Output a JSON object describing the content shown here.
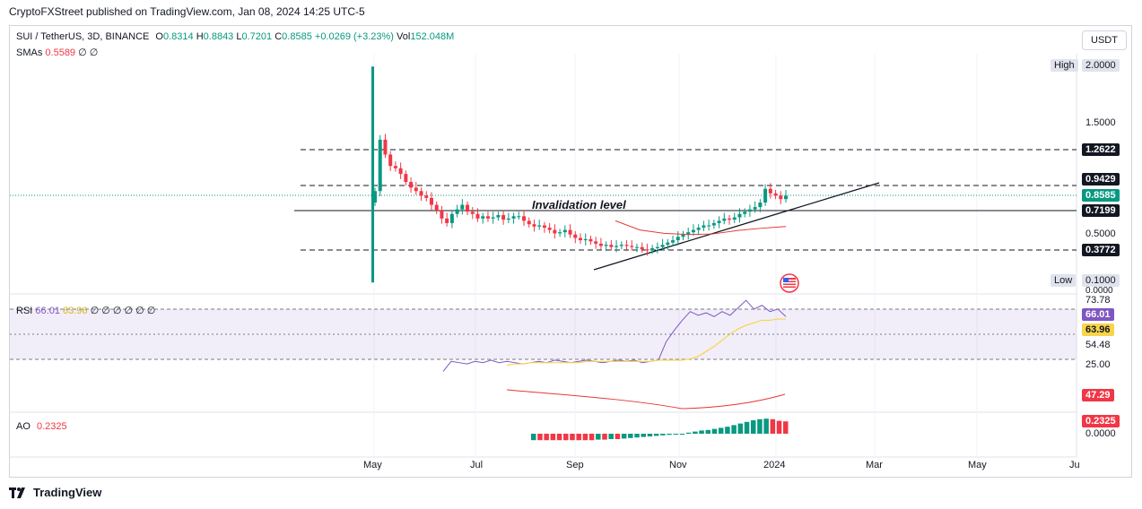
{
  "header": {
    "publisher_line": "CryptoFXStreet published on TradingView.com, Jan 08, 2024 14:25 UTC-5"
  },
  "symbol": {
    "name": "SUI / TetherUS, 3D, BINANCE",
    "o_label": "O",
    "o": "0.8314",
    "h_label": "H",
    "h": "0.8843",
    "l_label": "L",
    "l": "0.7201",
    "c_label": "C",
    "c": "0.8585",
    "change": "+0.0269 (+3.23%)",
    "vol_label": "Vol",
    "vol": "152.048M"
  },
  "sma": {
    "label": "SMAs",
    "value": "0.5589",
    "n1": "∅",
    "n2": "∅"
  },
  "rsi": {
    "label": "RSI",
    "v1": "66.01",
    "v2": "63.96",
    "rest": "∅ ∅ ∅ ∅ ∅   ∅"
  },
  "ao": {
    "label": "AO",
    "value": "0.2325"
  },
  "currency_button": "USDT",
  "annotation": "Invalidation level",
  "high_low": {
    "high_label": "High",
    "high_value": "2.0000",
    "low_label": "Low",
    "low_value": "0.1000"
  },
  "price_axis": {
    "plain": [
      "1.5000",
      "0.5000",
      "0.0000"
    ],
    "tags": [
      {
        "value": "1.2622",
        "style": "dark"
      },
      {
        "value": "0.9429",
        "style": "dark"
      },
      {
        "value": "0.8585",
        "style": "green"
      },
      {
        "value": "0.7199",
        "style": "dark"
      },
      {
        "value": "0.3772",
        "style": "dark"
      }
    ]
  },
  "rsi_axis": {
    "plain": [
      "73.78",
      "54.48",
      "25.00"
    ],
    "tags": [
      {
        "value": "66.01",
        "style": "purple"
      },
      {
        "value": "63.96",
        "style": "yellow"
      }
    ]
  },
  "lower_axis": {
    "tags": [
      {
        "value": "47.29",
        "style": "red"
      },
      {
        "value": "0.2325",
        "style": "red"
      }
    ],
    "plain": [
      "0.0000"
    ]
  },
  "time_axis": [
    "May",
    "Jul",
    "Sep",
    "Nov",
    "2024",
    "Mar",
    "May",
    "Ju"
  ],
  "footer": "TradingView",
  "colors": {
    "up": "#089981",
    "down": "#f23645",
    "sma": "#e53935",
    "rsi": "#7e57c2",
    "rsi_ma": "#f7d44a",
    "ao_up": "#089981",
    "ao_down": "#f23645"
  },
  "chart_data": {
    "type": "candlestick",
    "title": "SUI / TetherUS, 3D, BINANCE",
    "price_range": [
      0.0,
      2.0
    ],
    "horizontal_levels": [
      1.2622,
      0.9429,
      0.7199,
      0.3772
    ],
    "current_price": 0.8585,
    "trendline": {
      "from": [
        "2023-08-20",
        0.14
      ],
      "to": [
        "2024-02-25",
        0.95
      ]
    },
    "closes": [
      0.9,
      1.35,
      1.22,
      1.12,
      1.1,
      1.05,
      0.98,
      0.93,
      0.9,
      0.86,
      0.84,
      0.78,
      0.73,
      0.66,
      0.62,
      0.7,
      0.74,
      0.78,
      0.72,
      0.7,
      0.66,
      0.68,
      0.66,
      0.67,
      0.69,
      0.65,
      0.66,
      0.68,
      0.68,
      0.64,
      0.61,
      0.59,
      0.6,
      0.58,
      0.56,
      0.53,
      0.54,
      0.56,
      0.52,
      0.49,
      0.47,
      0.48,
      0.46,
      0.44,
      0.42,
      0.43,
      0.41,
      0.42,
      0.43,
      0.42,
      0.41,
      0.41,
      0.39,
      0.38,
      0.4,
      0.41,
      0.43,
      0.45,
      0.47,
      0.5,
      0.52,
      0.54,
      0.56,
      0.58,
      0.6,
      0.6,
      0.62,
      0.64,
      0.66,
      0.65,
      0.67,
      0.7,
      0.72,
      0.74,
      0.76,
      0.8,
      0.92,
      0.88,
      0.86,
      0.83,
      0.86
    ],
    "sma_line": [
      [
        0.68,
        0.64
      ],
      [
        0.63,
        0.56
      ],
      [
        0.58,
        0.53
      ],
      [
        0.54,
        0.52
      ],
      [
        0.5,
        0.525
      ],
      [
        0.46,
        0.555
      ],
      [
        0.42,
        0.575
      ],
      [
        0.4,
        0.59
      ]
    ],
    "rsi_range": [
      0,
      100
    ],
    "rsi_levels": [
      70,
      50,
      30
    ],
    "rsi": [
      22,
      30,
      29,
      28,
      30,
      29,
      31,
      29,
      30,
      29,
      28,
      29,
      30,
      29,
      31,
      30,
      29,
      30,
      31,
      30,
      29,
      30,
      31,
      30,
      31,
      29,
      30,
      31,
      46,
      55,
      63,
      70,
      67,
      69,
      66,
      70,
      67,
      73,
      79,
      72,
      75,
      70,
      72,
      66
    ],
    "rsi_ma": [
      27,
      28,
      28,
      29,
      29,
      29,
      29,
      29,
      29,
      29,
      30,
      30,
      30,
      30,
      30,
      30,
      30,
      30,
      30,
      31,
      31,
      31,
      31,
      32,
      34,
      38,
      42,
      47,
      52,
      56,
      59,
      61,
      63,
      63,
      64,
      64
    ],
    "ao": [
      -0.12,
      -0.12,
      -0.12,
      -0.12,
      -0.12,
      -0.12,
      -0.12,
      -0.12,
      -0.12,
      -0.12,
      -0.11,
      -0.11,
      -0.1,
      -0.1,
      -0.09,
      -0.08,
      -0.07,
      -0.06,
      -0.05,
      -0.04,
      -0.03,
      -0.02,
      -0.01,
      0.0,
      0.02,
      0.04,
      0.06,
      0.07,
      0.09,
      0.11,
      0.13,
      0.16,
      0.19,
      0.22,
      0.25,
      0.27,
      0.28,
      0.27,
      0.24,
      0.23
    ]
  }
}
